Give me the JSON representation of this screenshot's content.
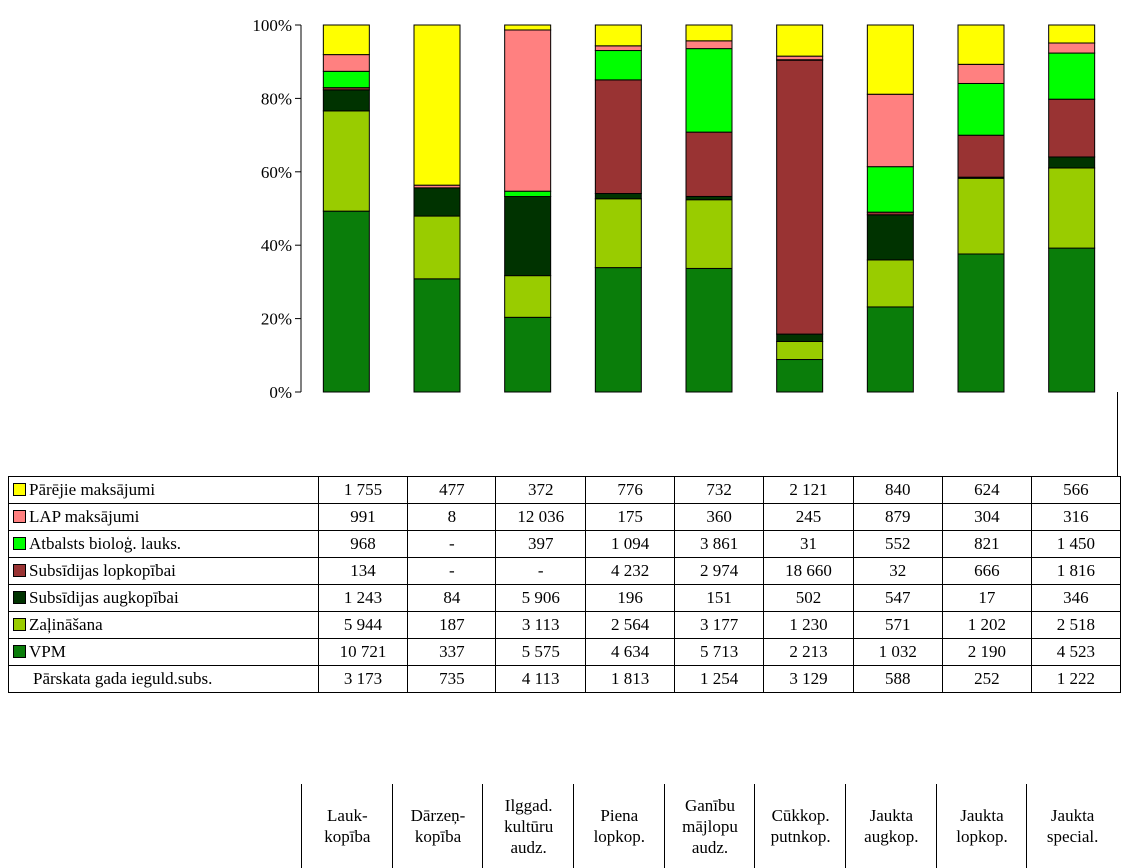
{
  "chart_data": {
    "type": "bar",
    "stacked": "percent",
    "categories": [
      "Lauk-\nkopība",
      "Dārzeņ-\nkopība",
      "Ilggad.\nkultūru\naudz.",
      "Piena\nlopkop.",
      "Ganību\nmājlopu\naudz.",
      "Cūkkop.\nputnkop.",
      "Jaukta\naugkop.",
      "Jaukta\nlopkop.",
      "Jaukta\nspecial."
    ],
    "yticks": [
      "0%",
      "20%",
      "40%",
      "60%",
      "80%",
      "100%"
    ],
    "ylim": [
      0,
      100
    ],
    "series": [
      {
        "name": "VPM",
        "color": "#0a7d0a",
        "values": [
          10721,
          337,
          5575,
          4634,
          5713,
          2213,
          1032,
          2190,
          4523
        ],
        "labels": [
          "10 721",
          "337",
          "5 575",
          "4 634",
          "5 713",
          "2 213",
          "1 032",
          "2 190",
          "4 523"
        ]
      },
      {
        "name": "Zaļināšana",
        "color": "#99cc00",
        "values": [
          5944,
          187,
          3113,
          2564,
          3177,
          1230,
          571,
          1202,
          2518
        ],
        "labels": [
          "5 944",
          "187",
          "3 113",
          "2 564",
          "3 177",
          "1 230",
          "571",
          "1 202",
          "2 518"
        ]
      },
      {
        "name": "Subsīdijas augkopībai",
        "color": "#003300",
        "values": [
          1243,
          84,
          5906,
          196,
          151,
          502,
          547,
          17,
          346
        ],
        "labels": [
          "1 243",
          "84",
          "5 906",
          "196",
          "151",
          "502",
          "547",
          "17",
          "346"
        ]
      },
      {
        "name": "Subsīdijas lopkopībai",
        "color": "#993333",
        "values": [
          134,
          0,
          0,
          4232,
          2974,
          18660,
          32,
          666,
          1816
        ],
        "labels": [
          "134",
          "-",
          "-",
          "4 232",
          "2 974",
          "18 660",
          "32",
          "666",
          "1 816"
        ]
      },
      {
        "name": "Atbalsts bioloģ. lauks.",
        "color": "#00ff00",
        "values": [
          968,
          0,
          397,
          1094,
          3861,
          31,
          552,
          821,
          1450
        ],
        "labels": [
          "968",
          "-",
          "397",
          "1 094",
          "3 861",
          "31",
          "552",
          "821",
          "1 450"
        ]
      },
      {
        "name": "LAP maksājumi",
        "color": "#ff8080",
        "values": [
          991,
          8,
          12036,
          175,
          360,
          245,
          879,
          304,
          316
        ],
        "labels": [
          "991",
          "8",
          "12 036",
          "175",
          "360",
          "245",
          "879",
          "304",
          "316"
        ]
      },
      {
        "name": "Pārējie maksājumi",
        "color": "#ffff00",
        "values": [
          1755,
          477,
          372,
          776,
          732,
          2121,
          840,
          624,
          566
        ],
        "labels": [
          "1 755",
          "477",
          "372",
          "776",
          "732",
          "2 121",
          "840",
          "624",
          "566"
        ]
      }
    ],
    "table_order": [
      6,
      5,
      4,
      3,
      2,
      1,
      0
    ],
    "extra_row": {
      "name": "Pārskata gada ieguld.subs.",
      "labels": [
        "3 173",
        "735",
        "4 113",
        "1 813",
        "1 254",
        "3 129",
        "588",
        "252",
        "1 222"
      ]
    },
    "grid": false
  }
}
